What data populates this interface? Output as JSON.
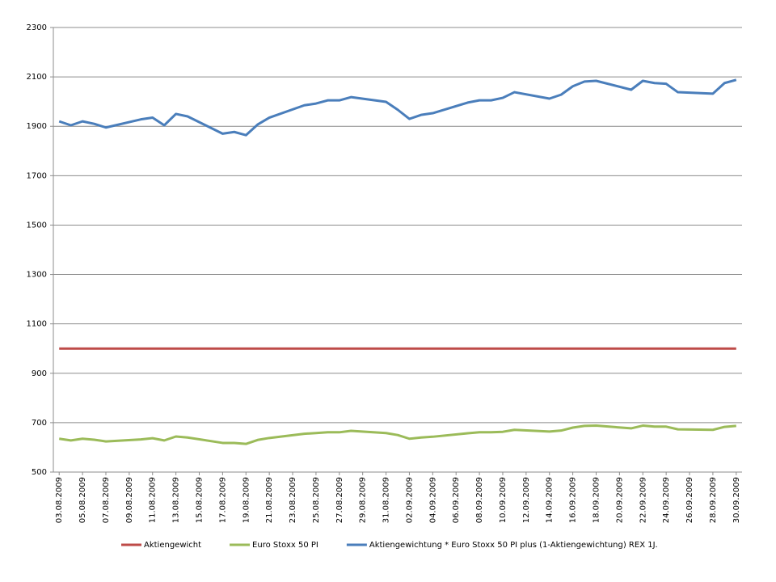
{
  "chart_data": {
    "type": "line",
    "x": [
      "03.08.2009",
      "04.08.2009",
      "05.08.2009",
      "06.08.2009",
      "07.08.2009",
      "10.08.2009",
      "11.08.2009",
      "12.08.2009",
      "13.08.2009",
      "14.08.2009",
      "17.08.2009",
      "18.08.2009",
      "19.08.2009",
      "20.08.2009",
      "21.08.2009",
      "24.08.2009",
      "25.08.2009",
      "26.08.2009",
      "27.08.2009",
      "28.08.2009",
      "31.08.2009",
      "01.09.2009",
      "02.09.2009",
      "03.09.2009",
      "04.09.2009",
      "07.09.2009",
      "08.09.2009",
      "09.09.2009",
      "10.09.2009",
      "11.09.2009",
      "14.09.2009",
      "15.09.2009",
      "16.09.2009",
      "17.09.2009",
      "18.09.2009",
      "21.09.2009",
      "22.09.2009",
      "23.09.2009",
      "24.09.2009",
      "25.09.2009",
      "28.09.2009",
      "29.09.2009",
      "30.09.2009"
    ],
    "xticks": [
      "03.08.2009",
      "05.08.2009",
      "07.08.2009",
      "09.08.2009",
      "11.08.2009",
      "13.08.2009",
      "15.08.2009",
      "17.08.2009",
      "19.08.2009",
      "21.08.2009",
      "23.08.2009",
      "25.08.2009",
      "27.08.2009",
      "29.08.2009",
      "31.08.2009",
      "02.09.2009",
      "04.09.2009",
      "06.09.2009",
      "08.09.2009",
      "10.09.2009",
      "12.09.2009",
      "14.09.2009",
      "16.09.2009",
      "18.09.2009",
      "20.09.2009",
      "22.09.2009",
      "24.09.2009",
      "26.09.2009",
      "28.09.2009",
      "30.09.2009"
    ],
    "ylim": [
      500,
      2300
    ],
    "yticks": [
      500,
      700,
      900,
      1100,
      1300,
      1500,
      1700,
      1900,
      2100,
      2300
    ],
    "grid": true,
    "legend": "bottom",
    "series": [
      {
        "name": "Aktiengewicht",
        "color": "#be4b48",
        "values": [
          1000,
          1000,
          1000,
          1000,
          1000,
          1000,
          1000,
          1000,
          1000,
          1000,
          1000,
          1000,
          1000,
          1000,
          1000,
          1000,
          1000,
          1000,
          1000,
          1000,
          1000,
          1000,
          1000,
          1000,
          1000,
          1000,
          1000,
          1000,
          1000,
          1000,
          1000,
          1000,
          1000,
          1000,
          1000,
          1000,
          1000,
          1000,
          1000,
          1000,
          1000,
          1000,
          1000
        ]
      },
      {
        "name": "Euro Stoxx 50 PI",
        "color": "#9bbb59",
        "values": [
          635,
          628,
          635,
          631,
          624,
          632,
          637,
          628,
          644,
          640,
          618,
          618,
          614,
          630,
          638,
          655,
          658,
          661,
          661,
          667,
          658,
          650,
          635,
          640,
          643,
          657,
          661,
          661,
          663,
          671,
          664,
          668,
          680,
          687,
          688,
          677,
          688,
          684,
          684,
          673,
          671,
          683,
          687
        ]
      },
      {
        "name": "Aktiengewichtung * Euro Stoxx 50 PI plus (1-Aktiengewichtung) REX 1J.",
        "color": "#4a7ebb",
        "values": [
          1920,
          1904,
          1920,
          1910,
          1895,
          1928,
          1935,
          1904,
          1950,
          1940,
          1870,
          1877,
          1864,
          1907,
          1935,
          1985,
          1992,
          2005,
          2005,
          2018,
          1999,
          1967,
          1930,
          1946,
          1953,
          1996,
          2005,
          2005,
          2015,
          2038,
          2012,
          2028,
          2062,
          2081,
          2084,
          2048,
          2084,
          2075,
          2072,
          2038,
          2032,
          2075,
          2088
        ]
      }
    ]
  }
}
